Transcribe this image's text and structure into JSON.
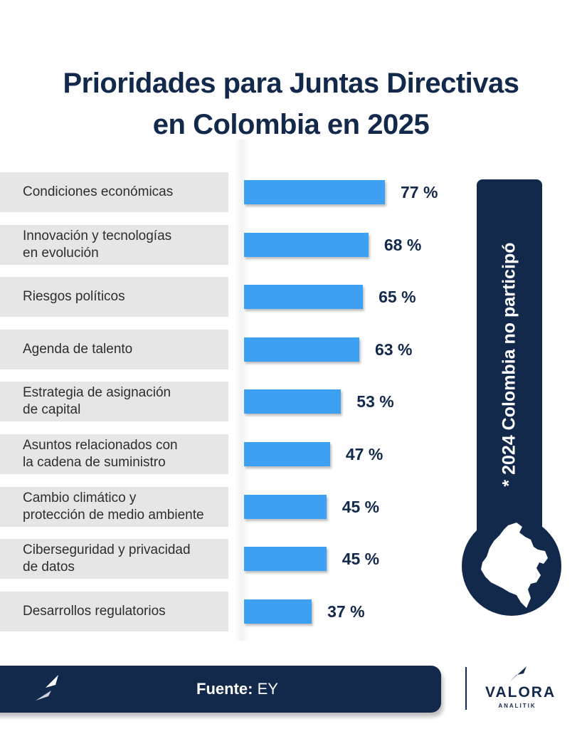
{
  "chart_data": {
    "type": "bar",
    "orientation": "horizontal",
    "title": "Prioridades para Juntas Directivas\nen Colombia en 2025",
    "categories": [
      "Condiciones económicas",
      "Innovación y tecnologías\nen evolución",
      "Riesgos políticos",
      "Agenda de talento",
      "Estrategia de asignación\nde capital",
      "Asuntos relacionados con\nla cadena de suministro",
      "Cambio climático y\nprotección de medio ambiente",
      "Ciberseguridad y privacidad\nde datos",
      "Desarrollos regulatorios"
    ],
    "values": [
      77,
      68,
      65,
      63,
      53,
      47,
      45,
      45,
      37
    ],
    "value_labels": [
      "77 %",
      "68 %",
      "65 %",
      "63 %",
      "53 %",
      "47 %",
      "45 %",
      "45 %",
      "37 %"
    ],
    "xlim": [
      0,
      100
    ],
    "bar_color": "#3ea0f3"
  },
  "side_note": "* 2024 Colombia no participó",
  "footer": {
    "source_label": "Fuente:",
    "source_value": "EY"
  },
  "brand": {
    "name": "VALORA",
    "sub": "ANALITIK"
  },
  "colors": {
    "navy": "#13294b",
    "bar": "#3ea0f3",
    "label_bg": "#e6e6e6"
  }
}
